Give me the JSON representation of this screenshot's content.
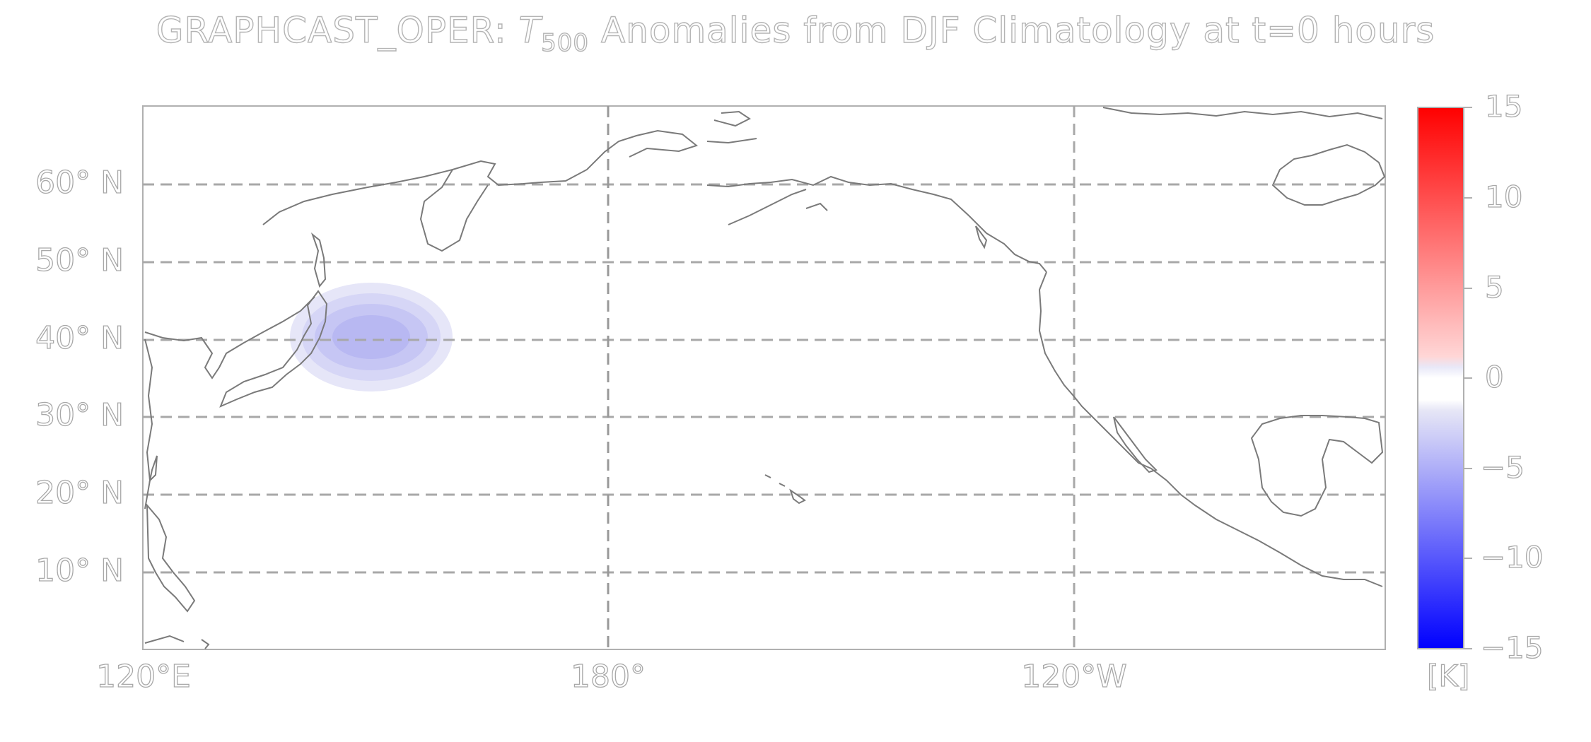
{
  "title": {
    "model": "GRAPHCAST_OPER:",
    "var_main": "T",
    "var_sub": "500",
    "rest": "Anomalies from DJF Climatology at t=0 hours"
  },
  "map": {
    "projection": "PlateCarree",
    "lon_range_deg": [
      120,
      385
    ],
    "lat_range_deg": [
      0,
      70
    ],
    "gridlines": "dashed",
    "lat_ticks": [
      "60° N",
      "50° N",
      "40° N",
      "30° N",
      "20° N",
      "10° N"
    ],
    "lon_ticks": [
      "120°E",
      "180°",
      "120°W"
    ],
    "anomaly_feature": {
      "type": "cold anomaly",
      "center_lon_deg": 148,
      "center_lat_deg": 40,
      "min_value_K": -4
    }
  },
  "colorbar": {
    "ticks": [
      "15",
      "10",
      "5",
      "0",
      "−5",
      "−10",
      "−15"
    ],
    "range": [
      -15,
      15
    ],
    "units": "[K]",
    "colors": {
      "max": "#ff0000",
      "mid": "#ffffff",
      "min": "#0000ff"
    }
  }
}
